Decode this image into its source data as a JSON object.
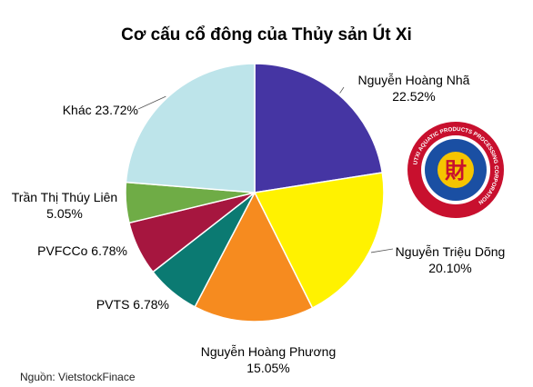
{
  "chart_data": {
    "type": "pie",
    "title": "Cơ cấu cổ đông của Thủy sản Út Xi",
    "slices": [
      {
        "name": "Nguyễn Hoàng Nhã",
        "value": 22.52,
        "label": "22.52%",
        "color": "#4535a3"
      },
      {
        "name": "Nguyễn Triệu Dõng",
        "value": 20.1,
        "label": "20.10%",
        "color": "#fff200"
      },
      {
        "name": "Nguyễn Hoàng Phương",
        "value": 15.05,
        "label": "15.05%",
        "color": "#f68b1f"
      },
      {
        "name": "PVTS",
        "value": 6.78,
        "label": "6.78%",
        "color": "#0b7a72"
      },
      {
        "name": "PVFCCo",
        "value": 6.78,
        "label": "6.78%",
        "color": "#a6163f"
      },
      {
        "name": "Trần Thị Thúy Liên",
        "value": 5.05,
        "label": "5.05%",
        "color": "#6fac46"
      },
      {
        "name": "Khác",
        "value": 23.72,
        "label": "23.72%",
        "color": "#bde4ea"
      }
    ]
  },
  "labels": {
    "s0_name": "Nguyễn Hoàng Nhã",
    "s0_val": "22.52%",
    "s1_name": "Nguyễn Triệu Dõng",
    "s1_val": "20.10%",
    "s2_name": "Nguyễn Hoàng Phương",
    "s2_val": "15.05%",
    "s3": "PVTS 6.78%",
    "s4": "PVFCCo 6.78%",
    "s5_name": "Trần Thị Thúy Liên",
    "s5_val": "5.05%",
    "s6": "Khác 23.72%"
  },
  "source": "Nguồn: VietstockFinace",
  "logo": {
    "ring_text": "UTXI AQUATIC PRODUCTS PROCESSING CORPORATION",
    "top_text": "CTY CỔ PHẦN CHẾ BIẾN THỦY SẢN ÚT XI",
    "center_glyph": "財",
    "colors": {
      "ring": "#c8102e",
      "field": "#1a4fa3",
      "center": "#f5c400"
    }
  }
}
